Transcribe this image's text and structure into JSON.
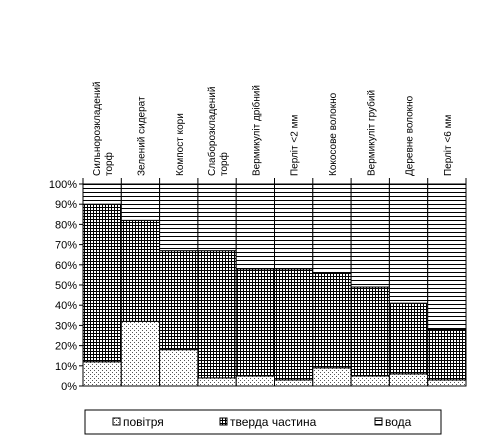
{
  "chart_data": {
    "type": "bar",
    "stacked": true,
    "categories": [
      "Сильнорозкладений торф",
      "Зелений сидерат",
      "Компост кори",
      "Слаборозкладений торф",
      "Вермикуліт дрібний",
      "Перліт <2 мм",
      "Кокосове волокно",
      "Вермикуліт грубий",
      "Деревне волокно",
      "Перліт <6 мм"
    ],
    "category_lines": [
      [
        "Сильнорозкладений",
        "торф"
      ],
      [
        "Зелений сидерат"
      ],
      [
        "Компост кори"
      ],
      [
        "Слаборозкладений",
        "торф"
      ],
      [
        "Вермикуліт дрібний"
      ],
      [
        "Перліт <2 мм"
      ],
      [
        "Кокосове волокно"
      ],
      [
        "Вермикуліт грубий"
      ],
      [
        "Деревне волокно"
      ],
      [
        "Перліт <6 мм"
      ]
    ],
    "series": [
      {
        "name": "повітря",
        "values": [
          12,
          32,
          18,
          4,
          5,
          3,
          9,
          5,
          6,
          3
        ]
      },
      {
        "name": "тверда частина",
        "values": [
          78,
          50,
          49,
          63,
          53,
          55,
          47,
          44,
          35,
          25
        ]
      },
      {
        "name": "вода",
        "values": [
          10,
          18,
          33,
          33,
          42,
          42,
          44,
          51,
          59,
          72
        ]
      }
    ],
    "yticks": [
      "0%",
      "10%",
      "20%",
      "30%",
      "40%",
      "50%",
      "60%",
      "70%",
      "80%",
      "90%",
      "100%"
    ],
    "ylim": [
      0,
      100
    ],
    "legend_position": "bottom",
    "grid": false
  }
}
